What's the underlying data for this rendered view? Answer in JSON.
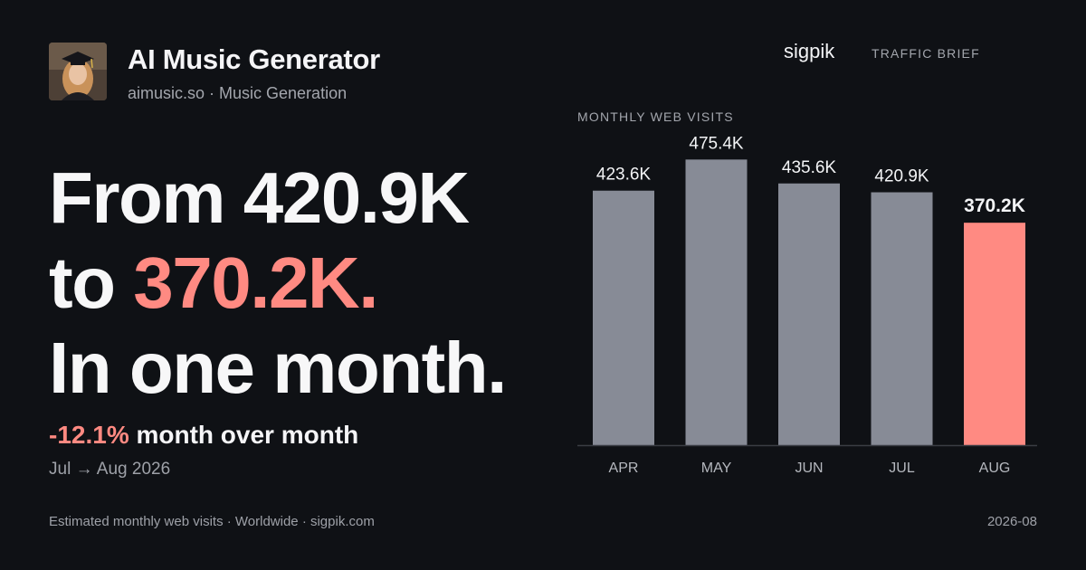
{
  "header": {
    "title": "AI Music Generator",
    "subtitle": "aimusic.so · Music Generation",
    "avatar_icon": "graduate-portrait-icon"
  },
  "brand": {
    "name": "sigpik",
    "section": "TRAFFIC BRIEF"
  },
  "headline": {
    "line1": "From 420.9K",
    "line2_prefix": "to ",
    "line2_accent": "370.2K.",
    "line3": "In one month."
  },
  "change": {
    "value": "-12.1%",
    "label": " month over month",
    "period": "Jul → Aug 2026"
  },
  "footer": {
    "source": "Estimated monthly web visits · Worldwide · sigpik.com",
    "date": "2026-08"
  },
  "colors": {
    "background": "#0f1115",
    "bar": "#878b96",
    "highlight": "#ff8a82"
  },
  "chart_data": {
    "type": "bar",
    "title": "MONTHLY WEB VISITS",
    "categories": [
      "APR",
      "MAY",
      "JUN",
      "JUL",
      "AUG"
    ],
    "values": [
      423.6,
      475.4,
      435.6,
      420.9,
      370.2
    ],
    "labels": [
      "423.6K",
      "475.4K",
      "435.6K",
      "420.9K",
      "370.2K"
    ],
    "unit": "K",
    "highlight_index": 4,
    "grid": false,
    "legend": "none"
  }
}
